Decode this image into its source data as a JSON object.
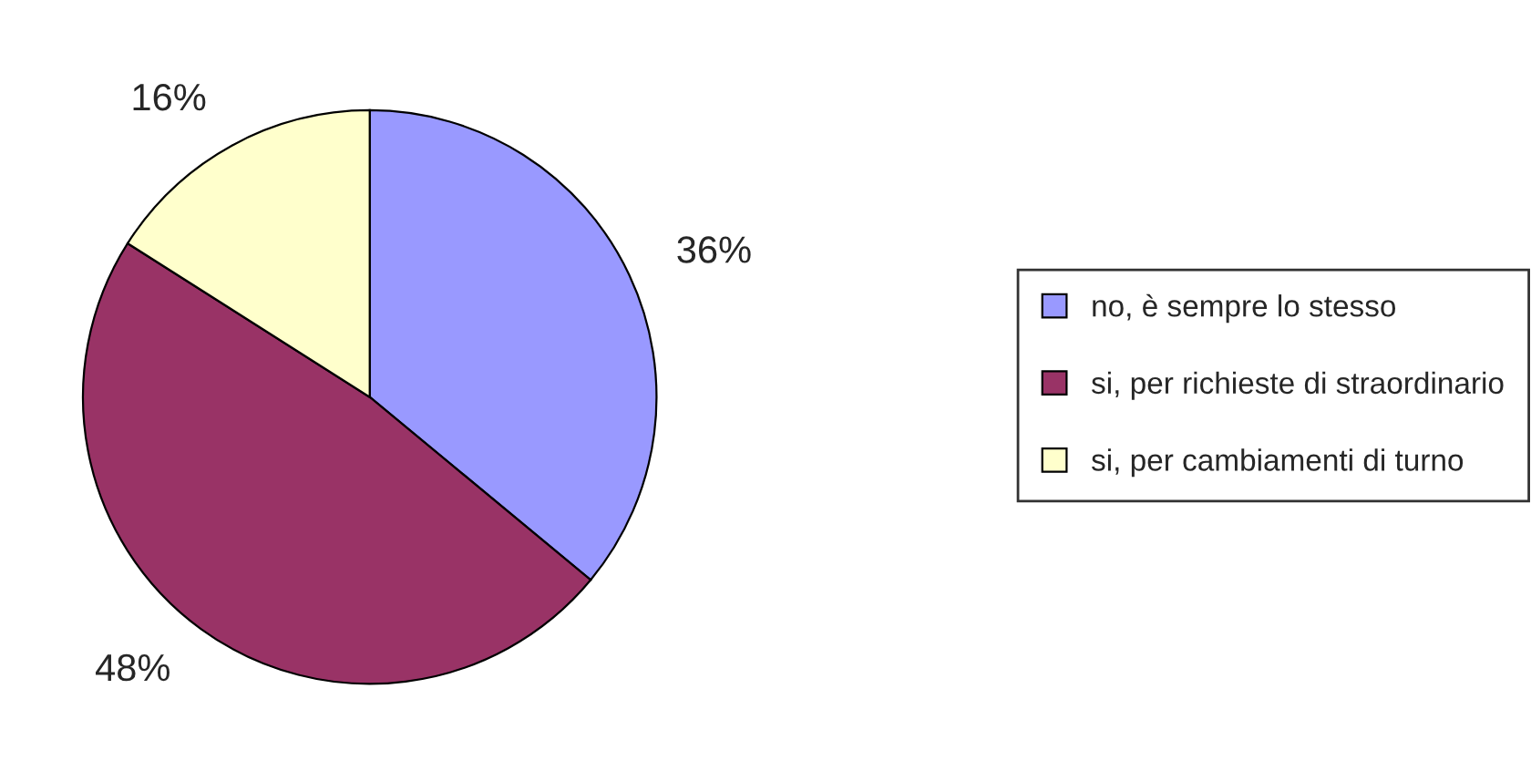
{
  "chart_data": {
    "type": "pie",
    "categories": [
      "no, è sempre lo stesso",
      "si, per richieste di straordinario",
      "si, per cambiamenti di turno"
    ],
    "values": [
      36,
      48,
      16
    ],
    "value_labels": [
      "36%",
      "48%",
      "16%"
    ],
    "colors": [
      "#9999ff",
      "#993366",
      "#ffffcc"
    ],
    "legend": "right"
  }
}
